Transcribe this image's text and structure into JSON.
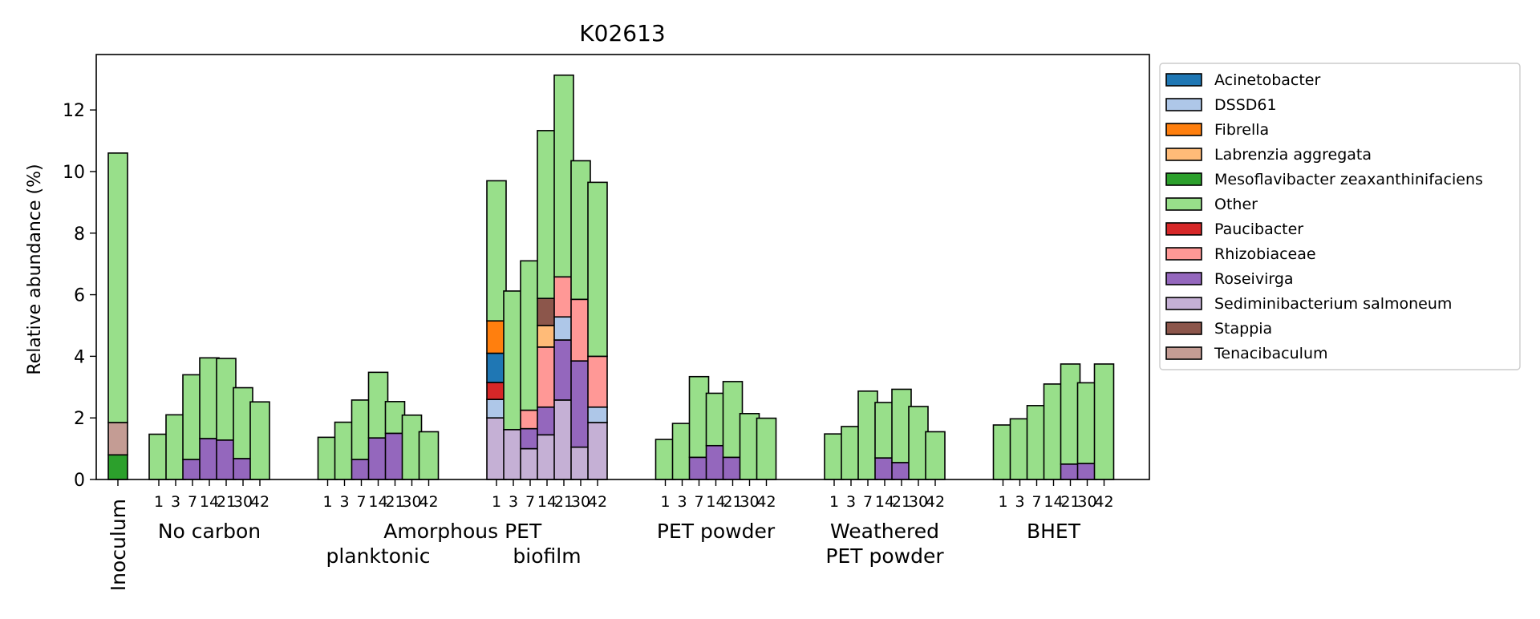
{
  "chart_data": {
    "type": "bar",
    "stacked": true,
    "title": "K02613",
    "ylabel": "Relative abundance (%)",
    "ylim": [
      0,
      13.8
    ],
    "yticks": [
      0,
      2,
      4,
      6,
      8,
      10,
      12
    ],
    "legend_position": "outside-right",
    "grid": false,
    "bar_categories": [
      "Inoculum",
      "No carbon 1",
      "No carbon 3",
      "No carbon 7",
      "No carbon 14",
      "No carbon 21",
      "No carbon 30",
      "No carbon 42",
      "Amorphous PET planktonic 1",
      "Amorphous PET planktonic 3",
      "Amorphous PET planktonic 7",
      "Amorphous PET planktonic 14",
      "Amorphous PET planktonic 21",
      "Amorphous PET planktonic 30",
      "Amorphous PET planktonic 42",
      "Amorphous PET biofilm 1",
      "Amorphous PET biofilm 3",
      "Amorphous PET biofilm 7",
      "Amorphous PET biofilm 14",
      "Amorphous PET biofilm 21",
      "Amorphous PET biofilm 30",
      "Amorphous PET biofilm 42",
      "PET powder 1",
      "PET powder 3",
      "PET powder 7",
      "PET powder 14",
      "PET powder 21",
      "PET powder 30",
      "PET powder 42",
      "Weathered PET powder 1",
      "Weathered PET powder 3",
      "Weathered PET powder 7",
      "Weathered PET powder 14",
      "Weathered PET powder 21",
      "Weathered PET powder 30",
      "Weathered PET powder 42",
      "BHET 1",
      "BHET 3",
      "BHET 7",
      "BHET 14",
      "BHET 21",
      "BHET 30",
      "BHET 42"
    ],
    "tick_labels": [
      "",
      "1",
      "3",
      "7",
      "14",
      "21",
      "30",
      "42",
      "1",
      "3",
      "7",
      "14",
      "21",
      "30",
      "42",
      "1",
      "3",
      "7",
      "14",
      "21",
      "30",
      "42",
      "1",
      "3",
      "7",
      "14",
      "21",
      "30",
      "42",
      "1",
      "3",
      "7",
      "14",
      "21",
      "30",
      "42",
      "1",
      "3",
      "7",
      "14",
      "21",
      "30",
      "42"
    ],
    "group_labels": [
      {
        "lines": [
          "No carbon"
        ],
        "bar_start": 1,
        "bar_end": 7
      },
      {
        "lines": [
          "Amorphous PET"
        ],
        "bar_start": 8,
        "bar_end": 21
      },
      {
        "lines": [
          "",
          "planktonic"
        ],
        "bar_start": 8,
        "bar_end": 14
      },
      {
        "lines": [
          "",
          "biofilm"
        ],
        "bar_start": 15,
        "bar_end": 21
      },
      {
        "lines": [
          "PET powder"
        ],
        "bar_start": 22,
        "bar_end": 28
      },
      {
        "lines": [
          "Weathered",
          "PET powder"
        ],
        "bar_start": 29,
        "bar_end": 35
      },
      {
        "lines": [
          "BHET"
        ],
        "bar_start": 36,
        "bar_end": 42
      }
    ],
    "rotated_label": {
      "text": "Inoculum",
      "bar": 0
    },
    "series": [
      {
        "name": "Acinetobacter",
        "color": "#1f77b4",
        "values": [
          0,
          0,
          0,
          0,
          0,
          0,
          0,
          0,
          0,
          0,
          0,
          0,
          0,
          0,
          0,
          0.95,
          0,
          0,
          0,
          0,
          0,
          0,
          0,
          0,
          0,
          0,
          0,
          0,
          0,
          0,
          0,
          0,
          0,
          0,
          0,
          0,
          0,
          0,
          0,
          0,
          0,
          0,
          0
        ]
      },
      {
        "name": "DSSD61",
        "color": "#aec7e8",
        "values": [
          0,
          0,
          0,
          0,
          0,
          0,
          0,
          0,
          0,
          0,
          0,
          0,
          0,
          0,
          0,
          0.6,
          0,
          0,
          0,
          0.75,
          0,
          0.5,
          0,
          0,
          0,
          0,
          0,
          0,
          0,
          0,
          0,
          0,
          0,
          0,
          0,
          0,
          0,
          0,
          0,
          0,
          0,
          0,
          0
        ]
      },
      {
        "name": "Fibrella",
        "color": "#ff7f0e",
        "values": [
          0,
          0,
          0,
          0,
          0,
          0,
          0,
          0,
          0,
          0,
          0,
          0,
          0,
          0,
          0,
          1.05,
          0,
          0,
          0,
          0,
          0,
          0,
          0,
          0,
          0,
          0,
          0,
          0,
          0,
          0,
          0,
          0,
          0,
          0,
          0,
          0,
          0,
          0,
          0,
          0,
          0,
          0,
          0
        ]
      },
      {
        "name": "Labrenzia aggregata",
        "color": "#ffbb78",
        "values": [
          0,
          0,
          0,
          0,
          0,
          0,
          0,
          0,
          0,
          0,
          0,
          0,
          0,
          0,
          0,
          0,
          0,
          0,
          0.7,
          0,
          0,
          0,
          0,
          0,
          0,
          0,
          0,
          0,
          0,
          0,
          0,
          0,
          0,
          0,
          0,
          0,
          0,
          0,
          0,
          0,
          0,
          0,
          0
        ]
      },
      {
        "name": "Mesoflavibacter zeaxanthinifaciens",
        "color": "#2ca02c",
        "values": [
          0.8,
          0,
          0,
          0,
          0,
          0,
          0,
          0,
          0,
          0,
          0,
          0,
          0,
          0,
          0,
          0,
          0,
          0,
          0,
          0,
          0,
          0,
          0,
          0,
          0,
          0,
          0,
          0,
          0,
          0,
          0,
          0,
          0,
          0,
          0,
          0,
          0,
          0,
          0,
          0,
          0,
          0,
          0
        ]
      },
      {
        "name": "Other",
        "color": "#98df8a",
        "values": [
          8.75,
          1.47,
          2.1,
          2.75,
          2.62,
          2.65,
          2.3,
          2.52,
          1.37,
          1.86,
          1.93,
          2.13,
          1.03,
          2.09,
          1.55,
          4.55,
          4.5,
          4.85,
          5.45,
          6.55,
          4.5,
          5.65,
          1.3,
          1.82,
          2.62,
          1.7,
          2.46,
          2.14,
          1.99,
          1.48,
          1.72,
          2.87,
          1.8,
          2.38,
          2.37,
          1.55,
          1.77,
          1.97,
          2.4,
          3.1,
          3.25,
          2.62,
          3.75
        ]
      },
      {
        "name": "Paucibacter",
        "color": "#d62728",
        "values": [
          0,
          0,
          0,
          0,
          0,
          0,
          0,
          0,
          0,
          0,
          0,
          0,
          0,
          0,
          0,
          0.55,
          0,
          0,
          0,
          0,
          0,
          0,
          0,
          0,
          0,
          0,
          0,
          0,
          0,
          0,
          0,
          0,
          0,
          0,
          0,
          0,
          0,
          0,
          0,
          0,
          0,
          0,
          0
        ]
      },
      {
        "name": "Rhizobiaceae",
        "color": "#ff9896",
        "values": [
          0,
          0,
          0,
          0,
          0,
          0,
          0,
          0,
          0,
          0,
          0,
          0,
          0,
          0,
          0,
          0,
          0,
          0.6,
          1.95,
          1.3,
          2.0,
          1.65,
          0,
          0,
          0,
          0,
          0,
          0,
          0,
          0,
          0,
          0,
          0,
          0,
          0,
          0,
          0,
          0,
          0,
          0,
          0,
          0,
          0
        ]
      },
      {
        "name": "Roseivirga",
        "color": "#9467bd",
        "values": [
          0,
          0,
          0,
          0.65,
          1.33,
          1.28,
          0.68,
          0,
          0,
          0,
          0.65,
          1.35,
          1.5,
          0,
          0,
          0,
          0,
          0.65,
          0.9,
          1.95,
          2.8,
          0,
          0,
          0,
          0.72,
          1.1,
          0.72,
          0,
          0,
          0,
          0,
          0,
          0.7,
          0.55,
          0,
          0,
          0,
          0,
          0,
          0,
          0.5,
          0.52,
          0
        ]
      },
      {
        "name": "Sediminibacterium salmoneum",
        "color": "#c5b0d5",
        "values": [
          0,
          0,
          0,
          0,
          0,
          0,
          0,
          0,
          0,
          0,
          0,
          0,
          0,
          0,
          0,
          2.0,
          1.62,
          1.0,
          1.45,
          2.58,
          1.05,
          1.85,
          0,
          0,
          0,
          0,
          0,
          0,
          0,
          0,
          0,
          0,
          0,
          0,
          0,
          0,
          0,
          0,
          0,
          0,
          0,
          0,
          0
        ]
      },
      {
        "name": "Stappia",
        "color": "#8c564b",
        "values": [
          0,
          0,
          0,
          0,
          0,
          0,
          0,
          0,
          0,
          0,
          0,
          0,
          0,
          0,
          0,
          0,
          0,
          0,
          0.88,
          0,
          0,
          0,
          0,
          0,
          0,
          0,
          0,
          0,
          0,
          0,
          0,
          0,
          0,
          0,
          0,
          0,
          0,
          0,
          0,
          0,
          0,
          0,
          0
        ]
      },
      {
        "name": "Tenacibaculum",
        "color": "#c49c94",
        "values": [
          1.05,
          0,
          0,
          0,
          0,
          0,
          0,
          0,
          0,
          0,
          0,
          0,
          0,
          0,
          0,
          0,
          0,
          0,
          0,
          0,
          0,
          0,
          0,
          0,
          0,
          0,
          0,
          0,
          0,
          0,
          0,
          0,
          0,
          0,
          0,
          0,
          0,
          0,
          0,
          0,
          0,
          0,
          0
        ]
      }
    ],
    "stack_order": [
      "Sediminibacterium salmoneum",
      "Mesoflavibacter zeaxanthinifaciens",
      "Roseivirga",
      "DSSD61",
      "Paucibacter",
      "Tenacibaculum",
      "Rhizobiaceae",
      "Acinetobacter",
      "Labrenzia aggregata",
      "Fibrella",
      "Stappia",
      "Other"
    ]
  }
}
